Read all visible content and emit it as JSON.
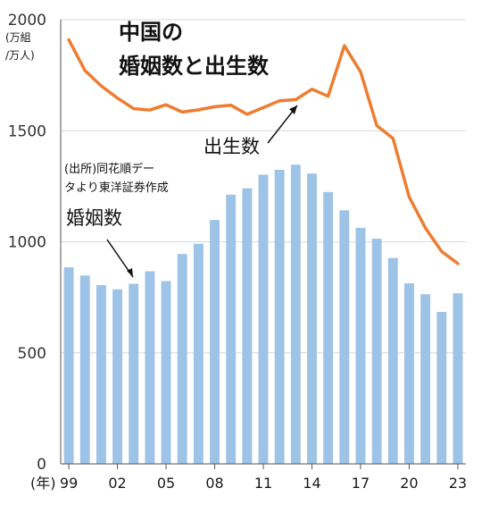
{
  "chart_data": {
    "type": "bar",
    "title_lines": [
      "中国の",
      "婚姻数と出生数"
    ],
    "unit_lines": [
      "(万組",
      "/万人)"
    ],
    "source_lines": [
      "(出所)同花順デー",
      "タより東洋証券作成"
    ],
    "xaxis_unit": "(年)",
    "x": [
      1999,
      2000,
      2001,
      2002,
      2003,
      2004,
      2005,
      2006,
      2007,
      2008,
      2009,
      2010,
      2011,
      2012,
      2013,
      2014,
      2015,
      2016,
      2017,
      2018,
      2019,
      2020,
      2021,
      2022,
      2023
    ],
    "x_tick_labels": [
      {
        "year": 1999,
        "label": "99"
      },
      {
        "year": 2002,
        "label": "02"
      },
      {
        "year": 2005,
        "label": "05"
      },
      {
        "year": 2008,
        "label": "08"
      },
      {
        "year": 2011,
        "label": "11"
      },
      {
        "year": 2014,
        "label": "14"
      },
      {
        "year": 2017,
        "label": "17"
      },
      {
        "year": 2020,
        "label": "20"
      },
      {
        "year": 2023,
        "label": "23"
      }
    ],
    "ylim": [
      0,
      2000
    ],
    "y_ticks": [
      0,
      500,
      1000,
      1500,
      2000
    ],
    "grid": true,
    "series": [
      {
        "name": "婚姻数",
        "kind": "bar",
        "color": "#9dc3e6",
        "values": [
          885,
          848,
          805,
          786,
          811,
          867,
          823,
          945,
          991,
          1098,
          1212,
          1241,
          1302,
          1324,
          1347,
          1307,
          1224,
          1142,
          1063,
          1014,
          927,
          813,
          764,
          684,
          768
        ]
      },
      {
        "name": "出生数",
        "kind": "line",
        "color": "#ed7d31",
        "values": [
          1909,
          1771,
          1702,
          1647,
          1599,
          1593,
          1617,
          1584,
          1594,
          1608,
          1615,
          1574,
          1604,
          1635,
          1640,
          1687,
          1655,
          1883,
          1765,
          1523,
          1465,
          1202,
          1062,
          956,
          902
        ]
      }
    ],
    "annotations": [
      {
        "text": "出生数",
        "points_to": "出生数",
        "year": 2014
      },
      {
        "text": "婚姻数",
        "points_to": "婚姻数",
        "year": 2003
      }
    ]
  }
}
